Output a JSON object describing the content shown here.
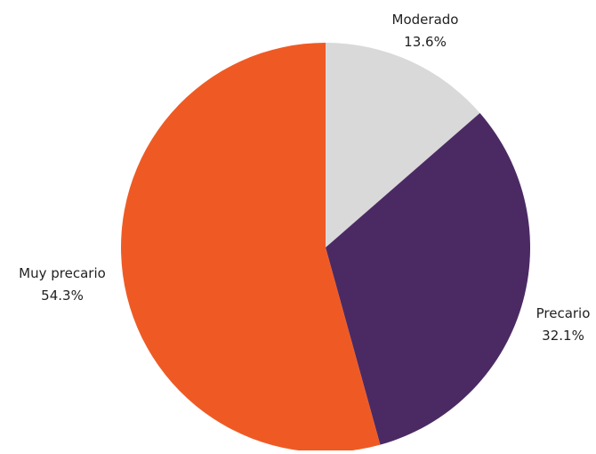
{
  "chart_data": {
    "type": "pie",
    "title": "",
    "slices": [
      {
        "label": "Moderado",
        "value": 13.6,
        "value_label": "13.6%",
        "color": "#d9d9d9"
      },
      {
        "label": "Precario",
        "value": 32.1,
        "value_label": "32.1%",
        "color": "#4b2a63"
      },
      {
        "label": "Muy precario",
        "value": 54.3,
        "value_label": "54.3%",
        "color": "#ef5a24"
      }
    ],
    "start_angle": "12 o'clock",
    "direction": "clockwise",
    "legend": "none"
  }
}
